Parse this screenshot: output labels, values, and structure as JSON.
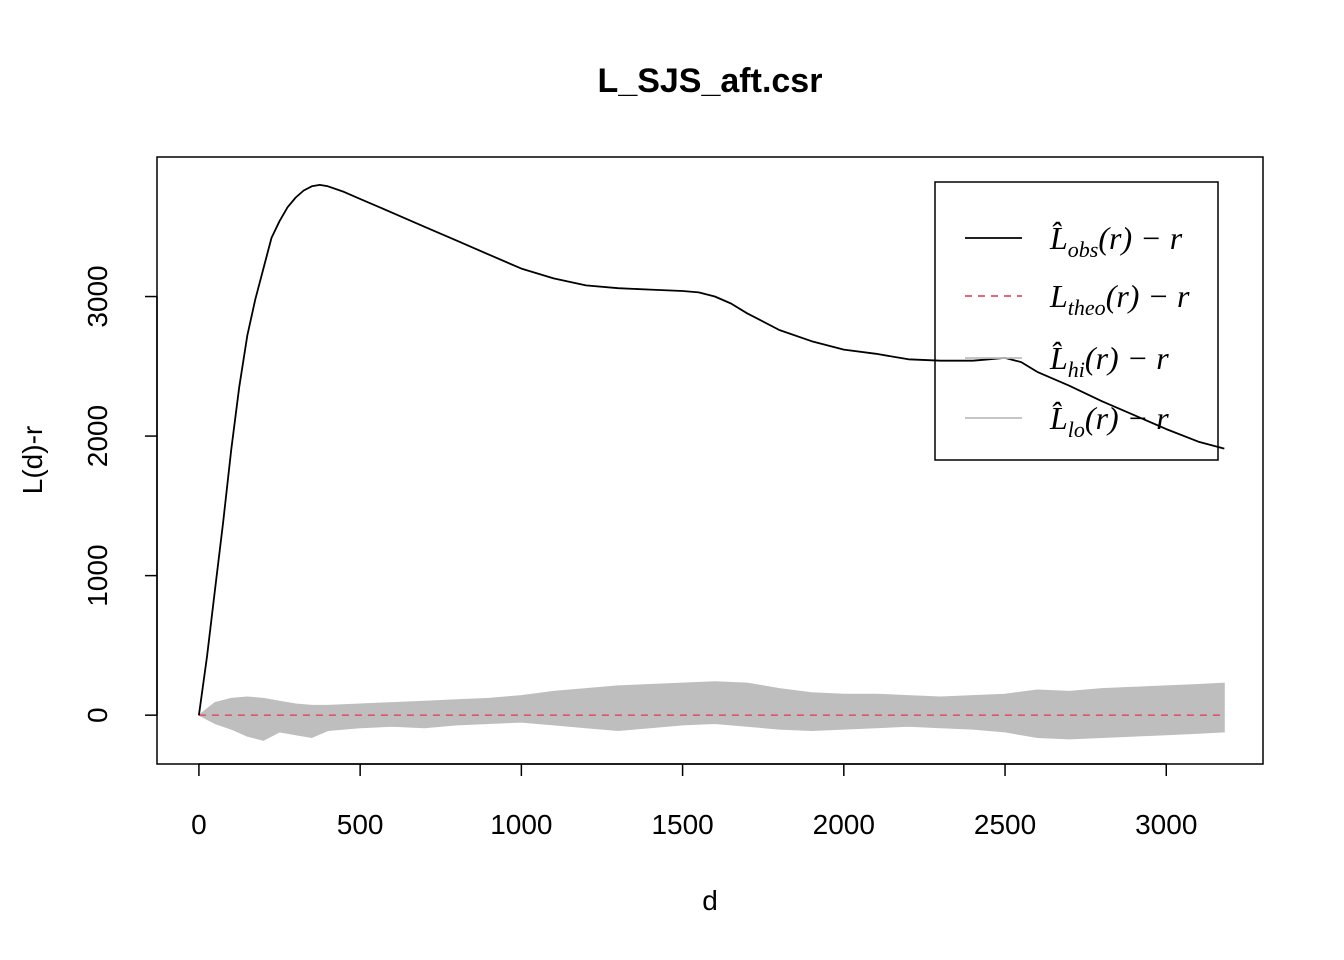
{
  "chart_data": {
    "type": "line",
    "title": "L_SJS_aft.csr",
    "xlabel": "d",
    "ylabel": "L(d)-r",
    "xlim": [
      -130,
      3300
    ],
    "ylim": [
      -350,
      4000
    ],
    "x_ticks": [
      0,
      500,
      1000,
      1500,
      2000,
      2500,
      3000
    ],
    "x_tick_labels": [
      "0",
      "500",
      "1000",
      "1500",
      "2000",
      "2500",
      "3000"
    ],
    "y_ticks": [
      0,
      1000,
      2000,
      3000
    ],
    "y_tick_labels": [
      "0",
      "1000",
      "2000",
      "3000"
    ],
    "grid": false,
    "legend_position": "top-right",
    "colors": {
      "obs": "#000000",
      "theo": "#DF536B",
      "envelope": "#BEBEBE",
      "axis": "#000000"
    },
    "series": [
      {
        "key": "obs",
        "legend_main": "L̂",
        "legend_sub": "obs",
        "legend_tail": "(r) − r",
        "line": "solid",
        "x": [
          0,
          25,
          50,
          75,
          100,
          125,
          150,
          175,
          200,
          225,
          250,
          275,
          300,
          325,
          350,
          375,
          400,
          450,
          500,
          600,
          700,
          800,
          900,
          1000,
          1100,
          1200,
          1300,
          1400,
          1500,
          1550,
          1600,
          1650,
          1700,
          1800,
          1900,
          2000,
          2100,
          2200,
          2300,
          2400,
          2450,
          2500,
          2550,
          2600,
          2700,
          2800,
          2900,
          3000,
          3100,
          3180
        ],
        "y": [
          0,
          420,
          900,
          1380,
          1900,
          2350,
          2720,
          2980,
          3200,
          3420,
          3540,
          3640,
          3710,
          3760,
          3790,
          3800,
          3790,
          3750,
          3700,
          3600,
          3500,
          3400,
          3300,
          3200,
          3130,
          3080,
          3060,
          3050,
          3040,
          3030,
          3000,
          2950,
          2880,
          2760,
          2680,
          2620,
          2590,
          2550,
          2540,
          2540,
          2550,
          2560,
          2530,
          2460,
          2360,
          2250,
          2150,
          2050,
          1960,
          1910
        ]
      },
      {
        "key": "theo",
        "legend_main": "L",
        "legend_sub": "theo",
        "legend_tail": "(r) − r",
        "line": "dashed",
        "x": [
          0,
          3180
        ],
        "y": [
          0,
          0
        ]
      },
      {
        "key": "hi",
        "legend_main": "L̂",
        "legend_sub": "hi",
        "legend_tail": "(r) − r",
        "line": "solid",
        "x": [
          0,
          50,
          100,
          150,
          200,
          250,
          300,
          350,
          400,
          500,
          600,
          700,
          800,
          900,
          1000,
          1100,
          1200,
          1300,
          1400,
          1500,
          1600,
          1700,
          1800,
          1900,
          2000,
          2100,
          2200,
          2300,
          2400,
          2500,
          2600,
          2700,
          2800,
          2900,
          3000,
          3100,
          3180
        ],
        "y": [
          0,
          90,
          120,
          130,
          120,
          100,
          80,
          70,
          70,
          80,
          90,
          100,
          110,
          120,
          140,
          170,
          190,
          210,
          220,
          230,
          240,
          230,
          190,
          160,
          150,
          150,
          140,
          130,
          140,
          150,
          180,
          170,
          190,
          200,
          210,
          220,
          230
        ]
      },
      {
        "key": "lo",
        "legend_main": "L̂",
        "legend_sub": "lo",
        "legend_tail": "(r) − r",
        "line": "solid",
        "x": [
          0,
          50,
          100,
          150,
          200,
          250,
          300,
          350,
          400,
          500,
          600,
          700,
          800,
          900,
          1000,
          1100,
          1200,
          1300,
          1400,
          1500,
          1600,
          1700,
          1800,
          1900,
          2000,
          2100,
          2200,
          2300,
          2400,
          2500,
          2600,
          2700,
          2800,
          2900,
          3000,
          3100,
          3180
        ],
        "y": [
          0,
          -60,
          -100,
          -150,
          -180,
          -120,
          -140,
          -160,
          -110,
          -90,
          -80,
          -90,
          -70,
          -60,
          -50,
          -70,
          -90,
          -110,
          -90,
          -70,
          -60,
          -80,
          -100,
          -110,
          -100,
          -90,
          -80,
          -90,
          -100,
          -120,
          -160,
          -170,
          -160,
          -150,
          -140,
          -130,
          -120
        ]
      }
    ]
  }
}
